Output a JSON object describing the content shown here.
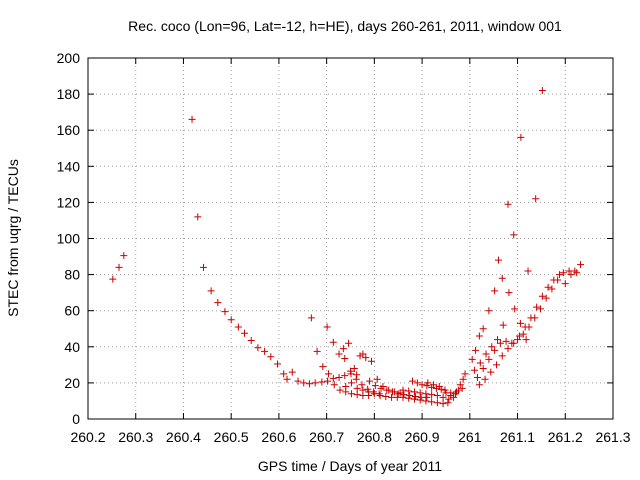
{
  "chart_data": {
    "type": "scatter",
    "title": "Rec. coco (Lon=96, Lat=-12, h=HE), days 260-261, 2011, window 001",
    "xlabel": "GPS time / Days of year 2011",
    "ylabel": "STEC from uqrg / TECUs",
    "xlim": [
      260.2,
      261.3
    ],
    "ylim": [
      0,
      200
    ],
    "x_ticks": [
      260.2,
      260.3,
      260.4,
      260.5,
      260.6,
      260.7,
      260.8,
      260.9,
      261,
      261.1,
      261.2,
      261.3
    ],
    "x_tick_labels": [
      "260.2",
      "260.3",
      "260.4",
      "260.5",
      "260.6",
      "260.7",
      "260.8",
      "260.9",
      "261",
      "261.1",
      "261.2",
      "261.3"
    ],
    "y_ticks": [
      0,
      20,
      40,
      60,
      80,
      100,
      120,
      140,
      160,
      180,
      200
    ],
    "y_tick_labels": [
      "0",
      "20",
      "40",
      "60",
      "80",
      "100",
      "120",
      "140",
      "160",
      "180",
      "200"
    ],
    "grid": true,
    "marker": "plus",
    "color": "#cc0000",
    "points": [
      [
        260.252,
        77.5
      ],
      [
        260.265,
        84
      ],
      [
        260.275,
        90.5
      ],
      [
        260.418,
        166
      ],
      [
        260.43,
        112
      ],
      [
        260.442,
        84
      ],
      [
        260.458,
        71
      ],
      [
        260.472,
        64.5
      ],
      [
        260.487,
        59.5
      ],
      [
        260.5,
        55
      ],
      [
        260.515,
        51
      ],
      [
        260.528,
        47.5
      ],
      [
        260.542,
        43.5
      ],
      [
        260.556,
        39.5
      ],
      [
        260.57,
        37.5
      ],
      [
        260.583,
        34.5
      ],
      [
        260.597,
        30.5
      ],
      [
        260.61,
        25
      ],
      [
        260.617,
        22
      ],
      [
        260.628,
        26
      ],
      [
        260.64,
        21
      ],
      [
        260.652,
        20
      ],
      [
        260.664,
        19.5
      ],
      [
        260.676,
        20
      ],
      [
        260.69,
        20.5
      ],
      [
        260.702,
        21
      ],
      [
        260.714,
        22.5
      ],
      [
        260.726,
        23
      ],
      [
        260.738,
        24
      ],
      [
        260.751,
        25
      ],
      [
        260.763,
        24.5
      ],
      [
        260.668,
        56
      ],
      [
        260.68,
        37.5
      ],
      [
        260.692,
        29
      ],
      [
        260.704,
        25
      ],
      [
        260.716,
        19
      ],
      [
        260.728,
        16
      ],
      [
        260.74,
        15
      ],
      [
        260.752,
        14
      ],
      [
        260.764,
        13.5
      ],
      [
        260.776,
        13
      ],
      [
        260.788,
        13
      ],
      [
        260.701,
        51
      ],
      [
        260.714,
        42.5
      ],
      [
        260.726,
        36
      ],
      [
        260.738,
        33.5
      ],
      [
        260.75,
        26.5
      ],
      [
        260.762,
        22
      ],
      [
        260.774,
        19
      ],
      [
        260.786,
        16.5
      ],
      [
        260.798,
        15
      ],
      [
        260.81,
        14
      ],
      [
        260.735,
        39
      ],
      [
        260.746,
        42
      ],
      [
        260.758,
        28
      ],
      [
        260.77,
        35
      ],
      [
        260.782,
        34
      ],
      [
        260.794,
        32
      ],
      [
        260.806,
        22
      ],
      [
        260.818,
        18
      ],
      [
        260.83,
        16
      ],
      [
        260.842,
        15
      ],
      [
        260.854,
        14.5
      ],
      [
        260.776,
        36
      ],
      [
        260.79,
        21
      ],
      [
        260.802,
        18.5
      ],
      [
        260.814,
        17
      ],
      [
        260.826,
        16
      ],
      [
        260.838,
        15
      ],
      [
        260.85,
        14
      ],
      [
        260.862,
        13.5
      ],
      [
        260.874,
        13
      ],
      [
        260.886,
        12.5
      ],
      [
        260.898,
        12
      ],
      [
        260.91,
        12
      ],
      [
        260.74,
        18
      ],
      [
        260.752,
        20
      ],
      [
        260.764,
        17
      ],
      [
        260.776,
        16
      ],
      [
        260.788,
        15
      ],
      [
        260.8,
        14
      ],
      [
        260.812,
        13
      ],
      [
        260.824,
        12.5
      ],
      [
        260.836,
        12
      ],
      [
        260.848,
        12
      ],
      [
        260.86,
        12
      ],
      [
        260.872,
        11.5
      ],
      [
        260.884,
        11
      ],
      [
        260.896,
        10.5
      ],
      [
        260.908,
        10
      ],
      [
        260.92,
        9.5
      ],
      [
        260.932,
        9
      ],
      [
        260.944,
        8.5
      ],
      [
        260.954,
        9
      ],
      [
        260.88,
        21
      ],
      [
        260.89,
        20
      ],
      [
        260.9,
        19
      ],
      [
        260.91,
        18.5
      ],
      [
        260.92,
        17.5
      ],
      [
        260.93,
        17
      ],
      [
        260.94,
        16.5
      ],
      [
        260.95,
        14.5
      ],
      [
        260.96,
        13
      ],
      [
        260.97,
        14
      ],
      [
        260.98,
        19
      ],
      [
        260.99,
        25
      ],
      [
        260.86,
        16
      ],
      [
        260.872,
        15.5
      ],
      [
        260.884,
        15
      ],
      [
        260.896,
        14.5
      ],
      [
        260.908,
        14
      ],
      [
        260.92,
        13.5
      ],
      [
        260.932,
        13
      ],
      [
        260.944,
        12
      ],
      [
        260.956,
        11
      ],
      [
        260.966,
        12
      ],
      [
        260.976,
        16
      ],
      [
        260.986,
        22
      ],
      [
        260.912,
        20
      ],
      [
        260.924,
        19
      ],
      [
        260.936,
        18
      ],
      [
        260.948,
        16
      ],
      [
        260.96,
        14.5
      ],
      [
        260.972,
        15
      ],
      [
        260.984,
        17
      ],
      [
        261.005,
        33
      ],
      [
        261.012,
        38
      ],
      [
        261.02,
        46
      ],
      [
        261.028,
        50
      ],
      [
        261.04,
        60
      ],
      [
        261.052,
        71
      ],
      [
        261.06,
        88
      ],
      [
        261.068,
        78
      ],
      [
        261.08,
        119
      ],
      [
        261.092,
        102
      ],
      [
        261.107,
        156
      ],
      [
        261.122,
        82
      ],
      [
        261.138,
        122
      ],
      [
        261.152,
        182
      ],
      [
        261.01,
        27
      ],
      [
        261.022,
        31
      ],
      [
        261.034,
        36
      ],
      [
        261.046,
        40
      ],
      [
        261.058,
        44
      ],
      [
        261.07,
        52
      ],
      [
        261.082,
        70
      ],
      [
        261.094,
        61
      ],
      [
        261.106,
        53
      ],
      [
        261.118,
        44
      ],
      [
        261.016,
        23
      ],
      [
        261.028,
        28
      ],
      [
        261.04,
        33
      ],
      [
        261.052,
        38
      ],
      [
        261.064,
        42
      ],
      [
        261.076,
        43
      ],
      [
        261.088,
        42
      ],
      [
        261.1,
        44
      ],
      [
        261.112,
        47
      ],
      [
        261.124,
        51
      ],
      [
        261.136,
        56
      ],
      [
        261.148,
        61
      ],
      [
        261.16,
        67
      ],
      [
        261.172,
        72
      ],
      [
        261.184,
        77
      ],
      [
        261.196,
        81
      ],
      [
        261.208,
        82
      ],
      [
        261.22,
        82
      ],
      [
        261.232,
        85.5
      ],
      [
        261.02,
        19
      ],
      [
        261.032,
        22
      ],
      [
        261.044,
        26
      ],
      [
        261.056,
        30
      ],
      [
        261.068,
        35
      ],
      [
        261.08,
        39
      ],
      [
        261.092,
        42
      ],
      [
        261.104,
        46
      ],
      [
        261.116,
        51
      ],
      [
        261.128,
        56
      ],
      [
        261.14,
        62
      ],
      [
        261.152,
        68
      ],
      [
        261.164,
        73
      ],
      [
        261.176,
        77
      ],
      [
        261.188,
        80
      ],
      [
        261.2,
        75
      ],
      [
        261.212,
        80
      ],
      [
        261.224,
        81
      ]
    ]
  }
}
